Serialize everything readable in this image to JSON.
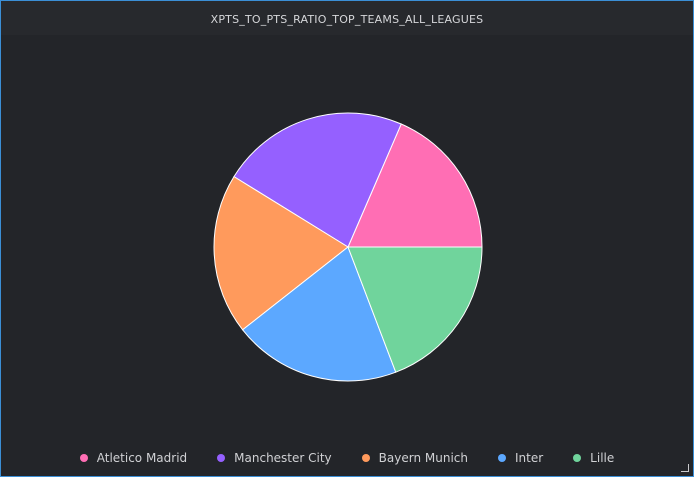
{
  "chart_data": {
    "type": "pie",
    "title": "XPTS_TO_PTS_RATIO_TOP_TEAMS_ALL_LEAGUES",
    "categories": [
      "Atletico Madrid",
      "Manchester City",
      "Bayern Munich",
      "Inter",
      "Lille"
    ],
    "values": [
      18.5,
      22.7,
      19.4,
      20.2,
      19.2
    ],
    "colors": [
      "#ff6eb4",
      "#9560ff",
      "#ff9a5c",
      "#5ca8ff",
      "#70d49c"
    ],
    "start_angle_deg": 0,
    "direction": "counterclockwise",
    "legend_position": "bottom"
  },
  "ui": {
    "resize_icon": "resize-corner-icon"
  }
}
